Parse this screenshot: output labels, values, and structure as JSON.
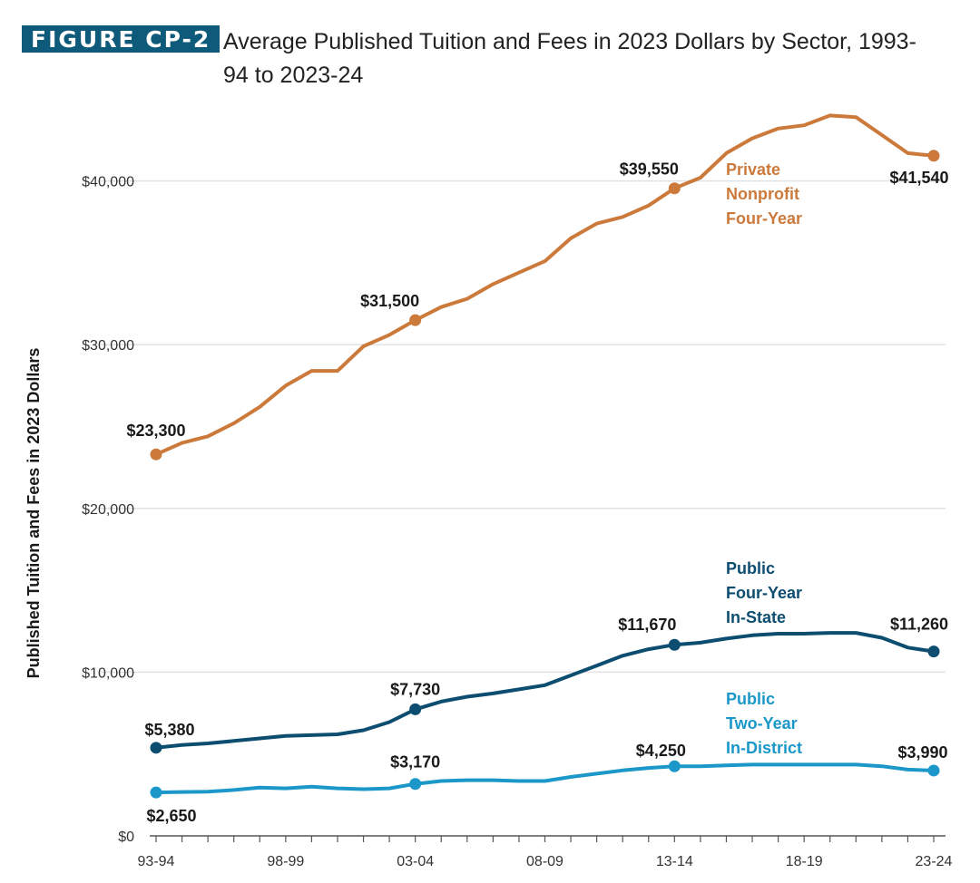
{
  "figure": {
    "badge": "FIGURE CP-2",
    "title": "Average Published Tuition and Fees in 2023 Dollars by Sector, 1993-94 to 2023-24"
  },
  "colors": {
    "private": "#cc7a3b",
    "public4": "#0c4d70",
    "public2": "#1b98c9",
    "badge": "#0e5a7a",
    "grid": "#e2e2e2",
    "axis": "#555555"
  },
  "chart_data": {
    "type": "line",
    "ylabel": "Published Tuition and Fees in 2023 Dollars",
    "xlabel": "",
    "ylim": [
      0,
      44000
    ],
    "y_ticks": [
      {
        "value": 0,
        "label": "$0"
      },
      {
        "value": 10000,
        "label": "$10,000"
      },
      {
        "value": 20000,
        "label": "$20,000"
      },
      {
        "value": 30000,
        "label": "$30,000"
      },
      {
        "value": 40000,
        "label": "$40,000"
      }
    ],
    "x": [
      "93-94",
      "94-95",
      "95-96",
      "96-97",
      "97-98",
      "98-99",
      "99-00",
      "00-01",
      "01-02",
      "02-03",
      "03-04",
      "04-05",
      "05-06",
      "06-07",
      "07-08",
      "08-09",
      "09-10",
      "10-11",
      "11-12",
      "12-13",
      "13-14",
      "14-15",
      "15-16",
      "16-17",
      "17-18",
      "18-19",
      "19-20",
      "20-21",
      "21-22",
      "22-23",
      "23-24"
    ],
    "x_tick_labels": [
      {
        "index": 0,
        "label": "93-94"
      },
      {
        "index": 5,
        "label": "98-99"
      },
      {
        "index": 10,
        "label": "03-04"
      },
      {
        "index": 15,
        "label": "08-09"
      },
      {
        "index": 20,
        "label": "13-14"
      },
      {
        "index": 25,
        "label": "18-19"
      },
      {
        "index": 30,
        "label": "23-24"
      }
    ],
    "grid": true,
    "series": [
      {
        "name": "Private Nonprofit Four-Year",
        "name_lines": [
          "Private",
          "Nonprofit",
          "Four-Year"
        ],
        "color_key": "private",
        "values": [
          23300,
          24000,
          24400,
          25200,
          26200,
          27500,
          28400,
          28400,
          29900,
          30600,
          31500,
          32300,
          32800,
          33700,
          34400,
          35100,
          36500,
          37400,
          37800,
          38500,
          39550,
          40200,
          41700,
          42600,
          43200,
          43400,
          44000,
          43900,
          42800,
          41700,
          41540
        ],
        "labels": [
          {
            "index": 0,
            "text": "$23,300"
          },
          {
            "index": 10,
            "text": "$31,500"
          },
          {
            "index": 20,
            "text": "$39,550"
          },
          {
            "index": 30,
            "text": "$41,540"
          }
        ]
      },
      {
        "name": "Public Four-Year In-State",
        "name_lines": [
          "Public",
          "Four-Year",
          "In-State"
        ],
        "color_key": "public4",
        "values": [
          5380,
          5550,
          5650,
          5800,
          5950,
          6100,
          6150,
          6200,
          6450,
          6950,
          7730,
          8200,
          8500,
          8700,
          8950,
          9200,
          9800,
          10400,
          11000,
          11400,
          11670,
          11800,
          12050,
          12250,
          12350,
          12350,
          12400,
          12400,
          12100,
          11500,
          11260
        ],
        "labels": [
          {
            "index": 0,
            "text": "$5,380"
          },
          {
            "index": 10,
            "text": "$7,730"
          },
          {
            "index": 20,
            "text": "$11,670"
          },
          {
            "index": 30,
            "text": "$11,260"
          }
        ]
      },
      {
        "name": "Public Two-Year In-District",
        "name_lines": [
          "Public",
          "Two-Year",
          "In-District"
        ],
        "color_key": "public2",
        "values": [
          2650,
          2680,
          2700,
          2800,
          2950,
          2900,
          3000,
          2900,
          2850,
          2900,
          3170,
          3350,
          3400,
          3400,
          3350,
          3350,
          3600,
          3800,
          4000,
          4150,
          4250,
          4250,
          4300,
          4350,
          4350,
          4350,
          4350,
          4350,
          4250,
          4050,
          3990
        ],
        "labels": [
          {
            "index": 0,
            "text": "$2,650"
          },
          {
            "index": 10,
            "text": "$3,170"
          },
          {
            "index": 20,
            "text": "$4,250"
          },
          {
            "index": 30,
            "text": "$3,990"
          }
        ]
      }
    ]
  }
}
